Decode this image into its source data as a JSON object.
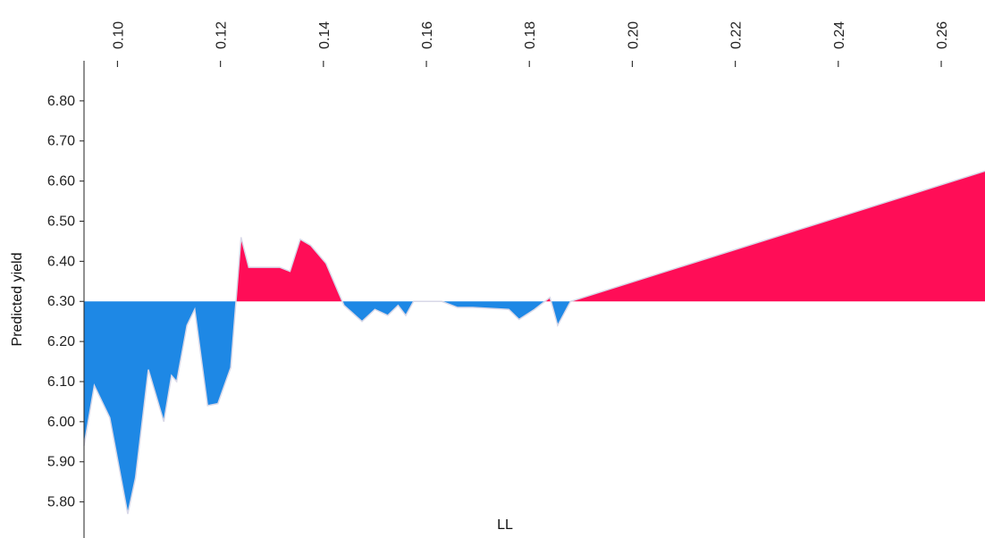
{
  "chart_data": {
    "type": "area",
    "title": "",
    "xlabel": "LL",
    "ylabel": "Predicted yield",
    "xlim": [
      0.0935,
      0.2685
    ],
    "ylim": [
      5.71,
      6.9
    ],
    "baseline": 6.3,
    "grid": false,
    "x_ticks": [
      0.1,
      0.12,
      0.14,
      0.16,
      0.18,
      0.2,
      0.22,
      0.24,
      0.26
    ],
    "x_tick_labels": [
      "0.10",
      "0.12",
      "0.14",
      "0.16",
      "0.18",
      "0.20",
      "0.22",
      "0.24",
      "0.26"
    ],
    "y_ticks": [
      5.8,
      5.9,
      6.0,
      6.1,
      6.2,
      6.3,
      6.4,
      6.5,
      6.6,
      6.7,
      6.8
    ],
    "y_tick_labels": [
      "5.80",
      "5.90",
      "6.00",
      "6.10",
      "6.20",
      "6.30",
      "6.40",
      "6.50",
      "6.60",
      "6.70",
      "6.80"
    ],
    "colors": {
      "above": "#ff0d57",
      "below": "#1e88e5",
      "edge": "#d8d8e8"
    },
    "x": [
      0.0935,
      0.0955,
      0.0985,
      0.102,
      0.1035,
      0.106,
      0.109,
      0.1105,
      0.1115,
      0.1135,
      0.115,
      0.1175,
      0.1195,
      0.122,
      0.124,
      0.1255,
      0.1315,
      0.1335,
      0.1355,
      0.1375,
      0.1405,
      0.142,
      0.144,
      0.1475,
      0.15,
      0.1525,
      0.1545,
      0.156,
      0.1575,
      0.159,
      0.161,
      0.163,
      0.166,
      0.169,
      0.176,
      0.178,
      0.181,
      0.184,
      0.1855,
      0.188,
      0.2685
    ],
    "values": [
      5.94,
      6.09,
      6.01,
      5.77,
      5.86,
      6.13,
      6.0,
      6.115,
      6.1,
      6.24,
      6.28,
      6.04,
      6.045,
      6.135,
      6.46,
      6.385,
      6.385,
      6.375,
      6.455,
      6.44,
      6.395,
      6.35,
      6.29,
      6.25,
      6.28,
      6.265,
      6.29,
      6.265,
      6.3,
      6.3,
      6.3,
      6.3,
      6.285,
      6.285,
      6.28,
      6.255,
      6.28,
      6.31,
      6.24,
      6.3,
      6.625
    ]
  }
}
